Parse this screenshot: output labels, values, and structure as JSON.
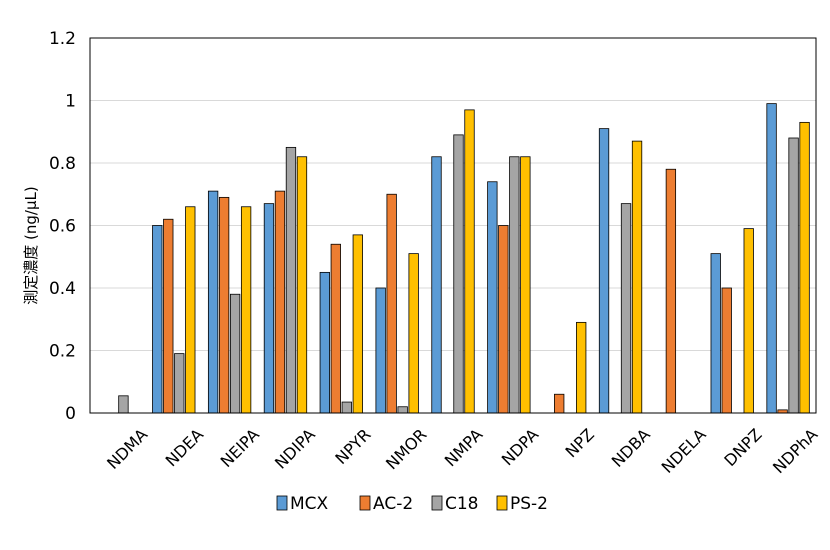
{
  "chart_data": {
    "type": "bar",
    "title": "",
    "xlabel": "",
    "ylabel": "測定濃度 (ng/μL)",
    "ylim": [
      0,
      1.2
    ],
    "yticks": [
      "0",
      "0.2",
      "0.4",
      "0.6",
      "0.8",
      "1",
      "1.2"
    ],
    "grid": true,
    "legend_position": "bottom",
    "categories": [
      "NDMA",
      "NDEA",
      "NEIPA",
      "NDIPA",
      "NPYR",
      "NMOR",
      "NMPA",
      "NDPA",
      "NPZ",
      "NDBA",
      "NDELA",
      "DNPZ",
      "NDPhA"
    ],
    "series": [
      {
        "name": "MCX",
        "color": "#5B9BD5",
        "values": [
          0,
          0.6,
          0.71,
          0.67,
          0.45,
          0.4,
          0.82,
          0.74,
          0,
          0.91,
          0,
          0.51,
          0.99
        ]
      },
      {
        "name": "AC-2",
        "color": "#ED7D31",
        "values": [
          0,
          0.62,
          0.69,
          0.71,
          0.54,
          0.7,
          0,
          0.6,
          0.06,
          0,
          0.78,
          0.4,
          0.01
        ]
      },
      {
        "name": "C18",
        "color": "#A5A5A5",
        "values": [
          0.055,
          0.19,
          0.38,
          0.85,
          0.035,
          0.02,
          0.89,
          0.82,
          0,
          0.67,
          0,
          0,
          0.88
        ]
      },
      {
        "name": "PS-2",
        "color": "#FFC000",
        "values": [
          0,
          0.66,
          0.66,
          0.82,
          0.57,
          0.51,
          0.97,
          0.82,
          0.29,
          0.87,
          0,
          0.59,
          0.93
        ]
      }
    ]
  }
}
